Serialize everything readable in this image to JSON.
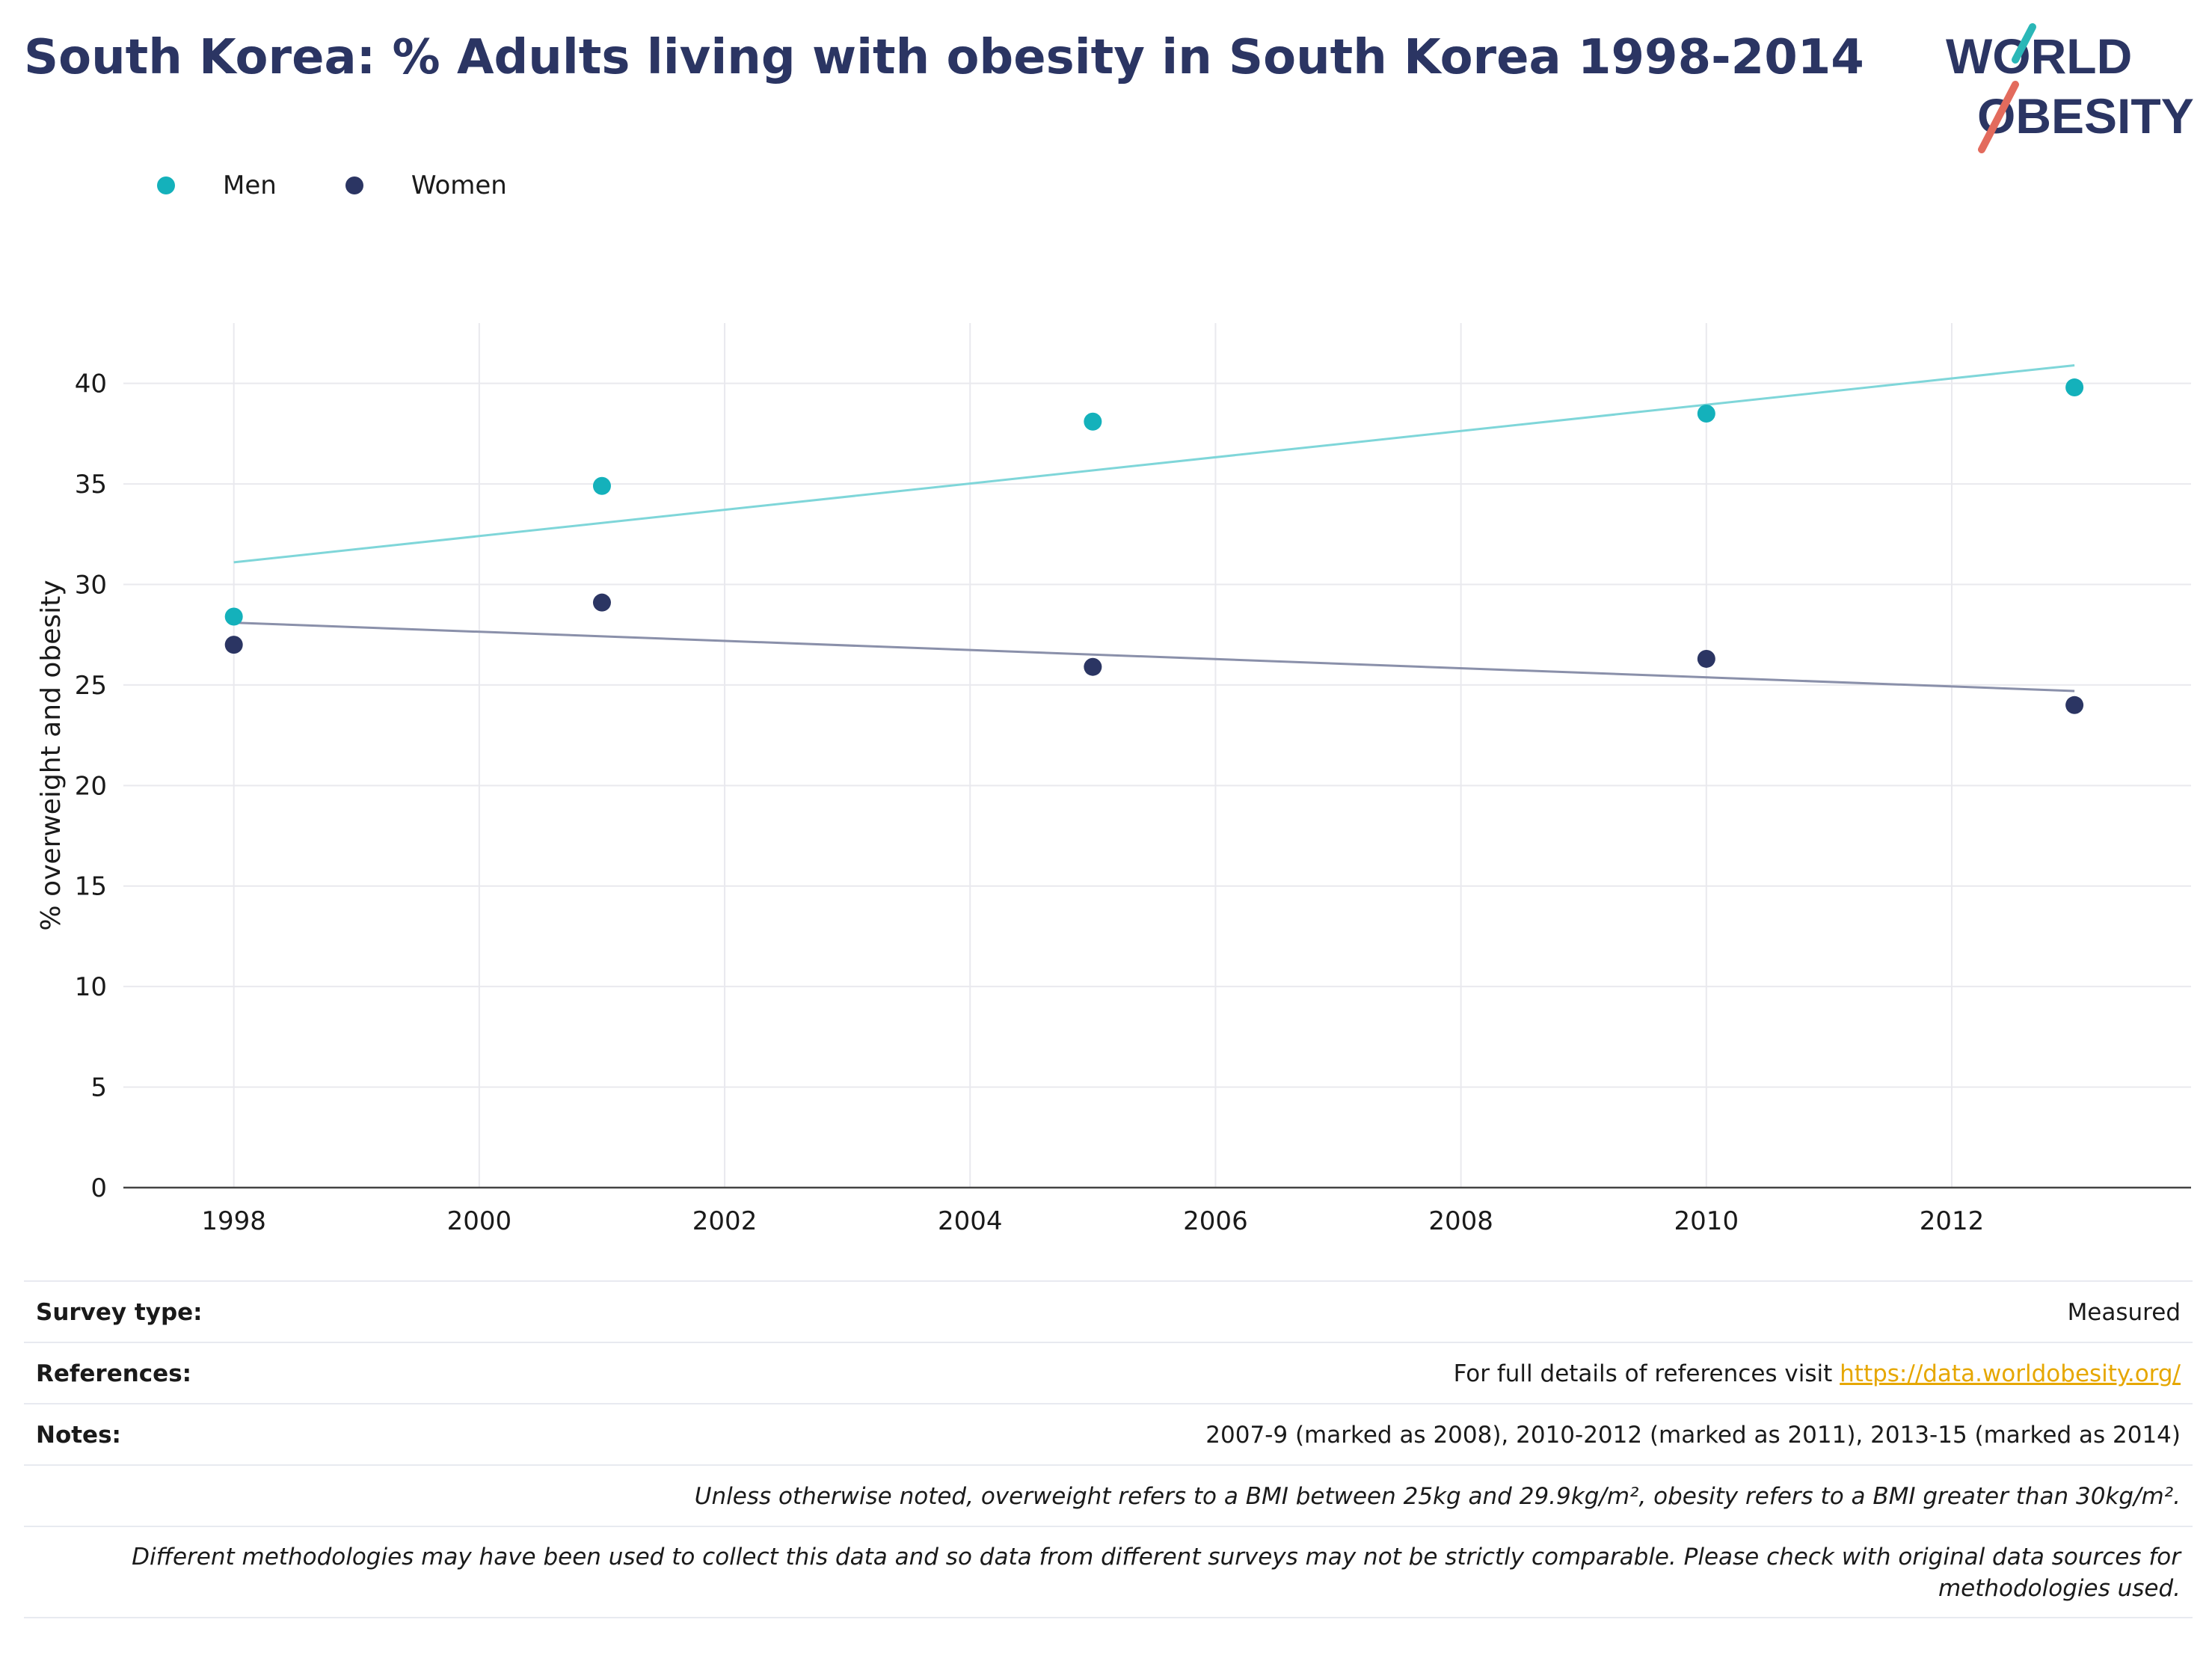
{
  "title": "South Korea: % Adults living with obesity in South Korea 1998-2014",
  "logo": {
    "line1": "WORLD",
    "line2": "OBESITY",
    "color": "#2b3563",
    "slash_teal": "#2ab7b7",
    "slash_coral": "#e36b5d"
  },
  "legend": [
    {
      "label": "Men",
      "color": "#14b1bb"
    },
    {
      "label": "Women",
      "color": "#2b3563"
    }
  ],
  "chart_data": {
    "type": "scatter",
    "ylabel": "% overweight and obesity",
    "xlabel": "",
    "xlim": [
      1997.1,
      2013.95
    ],
    "ylim": [
      0,
      43
    ],
    "xticks": [
      1998,
      2000,
      2002,
      2004,
      2006,
      2008,
      2010,
      2012
    ],
    "yticks": [
      0,
      5,
      10,
      15,
      20,
      25,
      30,
      35,
      40
    ],
    "grid": true,
    "legend_position": "top-left",
    "series": [
      {
        "name": "Men",
        "color": "#14b1bb",
        "trend_color": "#7fd6d9",
        "x": [
          1998,
          2001,
          2005,
          2010,
          2013
        ],
        "y": [
          28.4,
          34.9,
          38.1,
          38.5,
          39.8
        ],
        "trend": {
          "x": [
            1998,
            2013
          ],
          "y": [
            31.1,
            40.9
          ]
        }
      },
      {
        "name": "Women",
        "color": "#2b3563",
        "trend_color": "#8a90aa",
        "x": [
          1998,
          2001,
          2005,
          2010,
          2013
        ],
        "y": [
          27.0,
          29.1,
          25.9,
          26.3,
          24.0
        ],
        "trend": {
          "x": [
            1998,
            2013
          ],
          "y": [
            28.1,
            24.7
          ]
        }
      }
    ]
  },
  "info": {
    "survey_type_label": "Survey type:",
    "survey_type_value": "Measured",
    "references_label": "References:",
    "references_text": "For full details of references visit ",
    "references_link": "https://data.worldobesity.org/",
    "notes_label": "Notes:",
    "notes_value": "2007-9 (marked as 2008), 2010-2012 (marked as 2011), 2013-15 (marked as 2014)",
    "definition_note": "Unless otherwise noted, overweight refers to a BMI between 25kg and 29.9kg/m², obesity refers to a BMI greater than 30kg/m².",
    "methodology_note": "Different methodologies may have been used to collect this data and so data from different surveys may not be strictly comparable. Please check with original data sources for methodologies used."
  }
}
